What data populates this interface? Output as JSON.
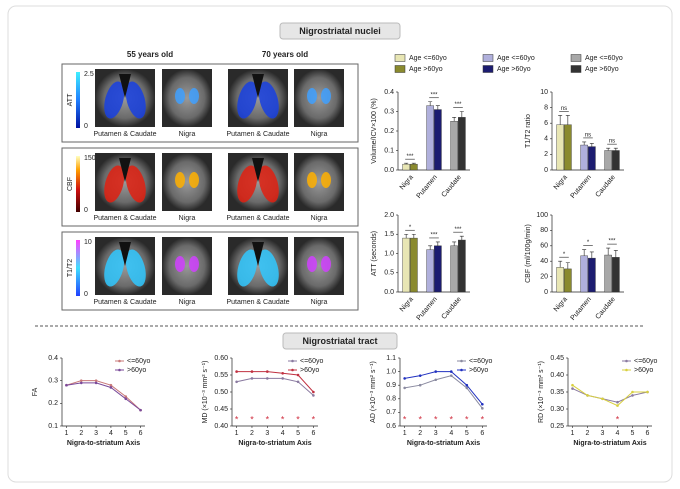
{
  "header": {
    "nuclei_title": "Nigrostriatal nuclei",
    "tract_title": "Nigrostriatal tract"
  },
  "images": {
    "columns": [
      "55 years old",
      "70 years old"
    ],
    "regions": [
      "Putamen & Caudate",
      "Nigra"
    ],
    "rows": [
      {
        "label": "ATT",
        "scale": [
          0,
          2.5
        ]
      },
      {
        "label": "CBF",
        "scale": [
          0,
          150
        ]
      },
      {
        "label": "T1/T2",
        "scale": [
          0,
          10
        ]
      }
    ]
  },
  "bar_legend": [
    {
      "label": "Age <=60yo",
      "color": "#e8e6b4"
    },
    {
      "label": "Age >60yo",
      "color": "#8a8a2e"
    },
    {
      "label": "Age <=60yo",
      "color": "#b0b0dc"
    },
    {
      "label": "Age >60yo",
      "color": "#1c1c70"
    },
    {
      "label": "Age <=60yo",
      "color": "#a8a8a8"
    },
    {
      "label": "Age >60yo",
      "color": "#333333"
    }
  ],
  "chart_data": [
    {
      "type": "bar",
      "ylabel": "Volume/ICV×100 (%)",
      "categories": [
        "Nigra",
        "Putamen",
        "Caudate"
      ],
      "series": [
        {
          "colors": [
            "#e8e6b4",
            "#b0b0dc",
            "#a8a8a8"
          ],
          "values": [
            0.03,
            0.33,
            0.25
          ],
          "errors": [
            0.005,
            0.02,
            0.02
          ]
        },
        {
          "colors": [
            "#8a8a2e",
            "#1c1c70",
            "#333333"
          ],
          "values": [
            0.03,
            0.31,
            0.27
          ],
          "errors": [
            0.005,
            0.02,
            0.03
          ]
        }
      ],
      "annotations": [
        "***",
        "***",
        "***"
      ],
      "ylim": [
        0,
        0.4
      ],
      "yticks": [
        {
          "value": 0,
          "label": "0.0"
        },
        0.1,
        0.2,
        0.3,
        0.4
      ]
    },
    {
      "type": "bar",
      "ylabel": "T1/T2 ratio",
      "categories": [
        "Nigra",
        "Putamen",
        "Caudate"
      ],
      "series": [
        {
          "colors": [
            "#e8e6b4",
            "#b0b0dc",
            "#a8a8a8"
          ],
          "values": [
            5.8,
            3.2,
            2.5
          ],
          "errors": [
            1.2,
            0.4,
            0.3
          ]
        },
        {
          "colors": [
            "#8a8a2e",
            "#1c1c70",
            "#333333"
          ],
          "values": [
            5.8,
            3.0,
            2.5
          ],
          "errors": [
            1.2,
            0.4,
            0.3
          ]
        }
      ],
      "annotations": [
        "ns",
        "ns",
        "ns"
      ],
      "ylim": [
        0,
        10
      ],
      "yticks": [
        0,
        2,
        4,
        6,
        8,
        10
      ]
    },
    {
      "type": "bar",
      "ylabel": "ATT (seconds)",
      "categories": [
        "Nigra",
        "Putamen",
        "Caudate"
      ],
      "series": [
        {
          "colors": [
            "#e8e6b4",
            "#b0b0dc",
            "#a8a8a8"
          ],
          "values": [
            1.4,
            1.1,
            1.2
          ],
          "errors": [
            0.1,
            0.1,
            0.1
          ]
        },
        {
          "colors": [
            "#8a8a2e",
            "#1c1c70",
            "#333333"
          ],
          "values": [
            1.4,
            1.2,
            1.35
          ],
          "errors": [
            0.1,
            0.1,
            0.1
          ]
        }
      ],
      "annotations": [
        "*",
        "***",
        "***"
      ],
      "ylim": [
        0,
        2
      ],
      "yticks": [
        {
          "value": 0,
          "label": "0.0"
        },
        0.5,
        {
          "value": 1,
          "label": "1.0"
        },
        1.5,
        {
          "value": 2,
          "label": "2.0"
        }
      ]
    },
    {
      "type": "bar",
      "ylabel": "CBF (ml/100g/min)",
      "categories": [
        "Nigra",
        "Putamen",
        "Caudate"
      ],
      "series": [
        {
          "colors": [
            "#e8e6b4",
            "#b0b0dc",
            "#a8a8a8"
          ],
          "values": [
            32,
            47,
            48
          ],
          "errors": [
            8,
            8,
            9
          ]
        },
        {
          "colors": [
            "#8a8a2e",
            "#1c1c70",
            "#333333"
          ],
          "values": [
            30,
            44,
            45
          ],
          "errors": [
            8,
            8,
            9
          ]
        }
      ],
      "annotations": [
        "*",
        "*",
        "***"
      ],
      "ylim": [
        0,
        100
      ],
      "yticks": [
        0,
        20,
        40,
        60,
        80,
        100
      ]
    },
    {
      "type": "line",
      "ylabel": "FA",
      "xlabel": "Nigra-to-striatum Axis",
      "x": [
        1,
        2,
        3,
        4,
        5,
        6
      ],
      "xlim": [
        0.7,
        6.3
      ],
      "xticks": [
        1,
        2,
        3,
        4,
        5,
        6
      ],
      "series": [
        {
          "name": "<=60yo",
          "color": "#c87878",
          "values": [
            0.28,
            0.3,
            0.3,
            0.28,
            0.23,
            0.17
          ]
        },
        {
          "name": ">60yo",
          "color": "#7a4a9a",
          "values": [
            0.28,
            0.29,
            0.29,
            0.27,
            0.22,
            0.17
          ]
        }
      ],
      "ylim": [
        0.1,
        0.4
      ],
      "yticks": [
        0.1,
        0.2,
        0.3,
        0.4
      ]
    },
    {
      "type": "line",
      "ylabel": "MD (×10⁻³ mm² s⁻¹)",
      "xlabel": "Nigra-to-striatum Axis",
      "x": [
        1,
        2,
        3,
        4,
        5,
        6
      ],
      "xlim": [
        0.7,
        6.3
      ],
      "xticks": [
        1,
        2,
        3,
        4,
        5,
        6
      ],
      "series": [
        {
          "name": "<=60yo",
          "color": "#8a7aa0",
          "values": [
            0.53,
            0.54,
            0.54,
            0.54,
            0.53,
            0.49
          ]
        },
        {
          "name": ">60yo",
          "color": "#c03040",
          "values": [
            0.56,
            0.56,
            0.56,
            0.555,
            0.55,
            0.5
          ]
        }
      ],
      "markers": {
        "symbol": "*",
        "color": "#d03040",
        "x": [
          1,
          2,
          3,
          4,
          5,
          6
        ]
      },
      "ylim": [
        0.4,
        0.6
      ],
      "yticks": [
        {
          "value": 0.4,
          "label": "0.40"
        },
        0.45,
        {
          "value": 0.5,
          "label": "0.50"
        },
        0.55,
        {
          "value": 0.6,
          "label": "0.60"
        }
      ]
    },
    {
      "type": "line",
      "ylabel": "AD (×10⁻³ mm² s⁻¹)",
      "xlabel": "Nigra-to-striatum Axis",
      "x": [
        1,
        2,
        3,
        4,
        5,
        6
      ],
      "xlim": [
        0.7,
        6.3
      ],
      "xticks": [
        1,
        2,
        3,
        4,
        5,
        6
      ],
      "series": [
        {
          "name": "<=60yo",
          "color": "#8a8aa0",
          "values": [
            0.88,
            0.9,
            0.94,
            0.97,
            0.88,
            0.73
          ]
        },
        {
          "name": ">60yo",
          "color": "#2030c0",
          "values": [
            0.95,
            0.97,
            1.0,
            1.0,
            0.9,
            0.76
          ]
        }
      ],
      "markers": {
        "symbol": "*",
        "color": "#d03040",
        "x": [
          1,
          2,
          3,
          4,
          5,
          6
        ]
      },
      "ylim": [
        0.6,
        1.1
      ],
      "yticks": [
        0.6,
        0.7,
        0.8,
        0.9,
        {
          "value": 1,
          "label": "1.0"
        },
        1.1
      ]
    },
    {
      "type": "line",
      "ylabel": "RD (×10⁻³ mm² s⁻¹)",
      "xlabel": "Nigra-to-striatum Axis",
      "x": [
        1,
        2,
        3,
        4,
        5,
        6
      ],
      "xlim": [
        0.7,
        6.3
      ],
      "xticks": [
        1,
        2,
        3,
        4,
        5,
        6
      ],
      "series": [
        {
          "name": "<=60yo",
          "color": "#8a7aa0",
          "values": [
            0.36,
            0.34,
            0.33,
            0.32,
            0.34,
            0.35
          ]
        },
        {
          "name": ">60yo",
          "color": "#d8d040",
          "values": [
            0.37,
            0.34,
            0.33,
            0.31,
            0.35,
            0.35
          ]
        }
      ],
      "markers": {
        "symbol": "*",
        "color": "#d03040",
        "x": [
          4
        ]
      },
      "ylim": [
        0.25,
        0.45
      ],
      "yticks": [
        0.25,
        {
          "value": 0.3,
          "label": "0.30"
        },
        0.35,
        {
          "value": 0.4,
          "label": "0.40"
        },
        0.45
      ]
    }
  ]
}
